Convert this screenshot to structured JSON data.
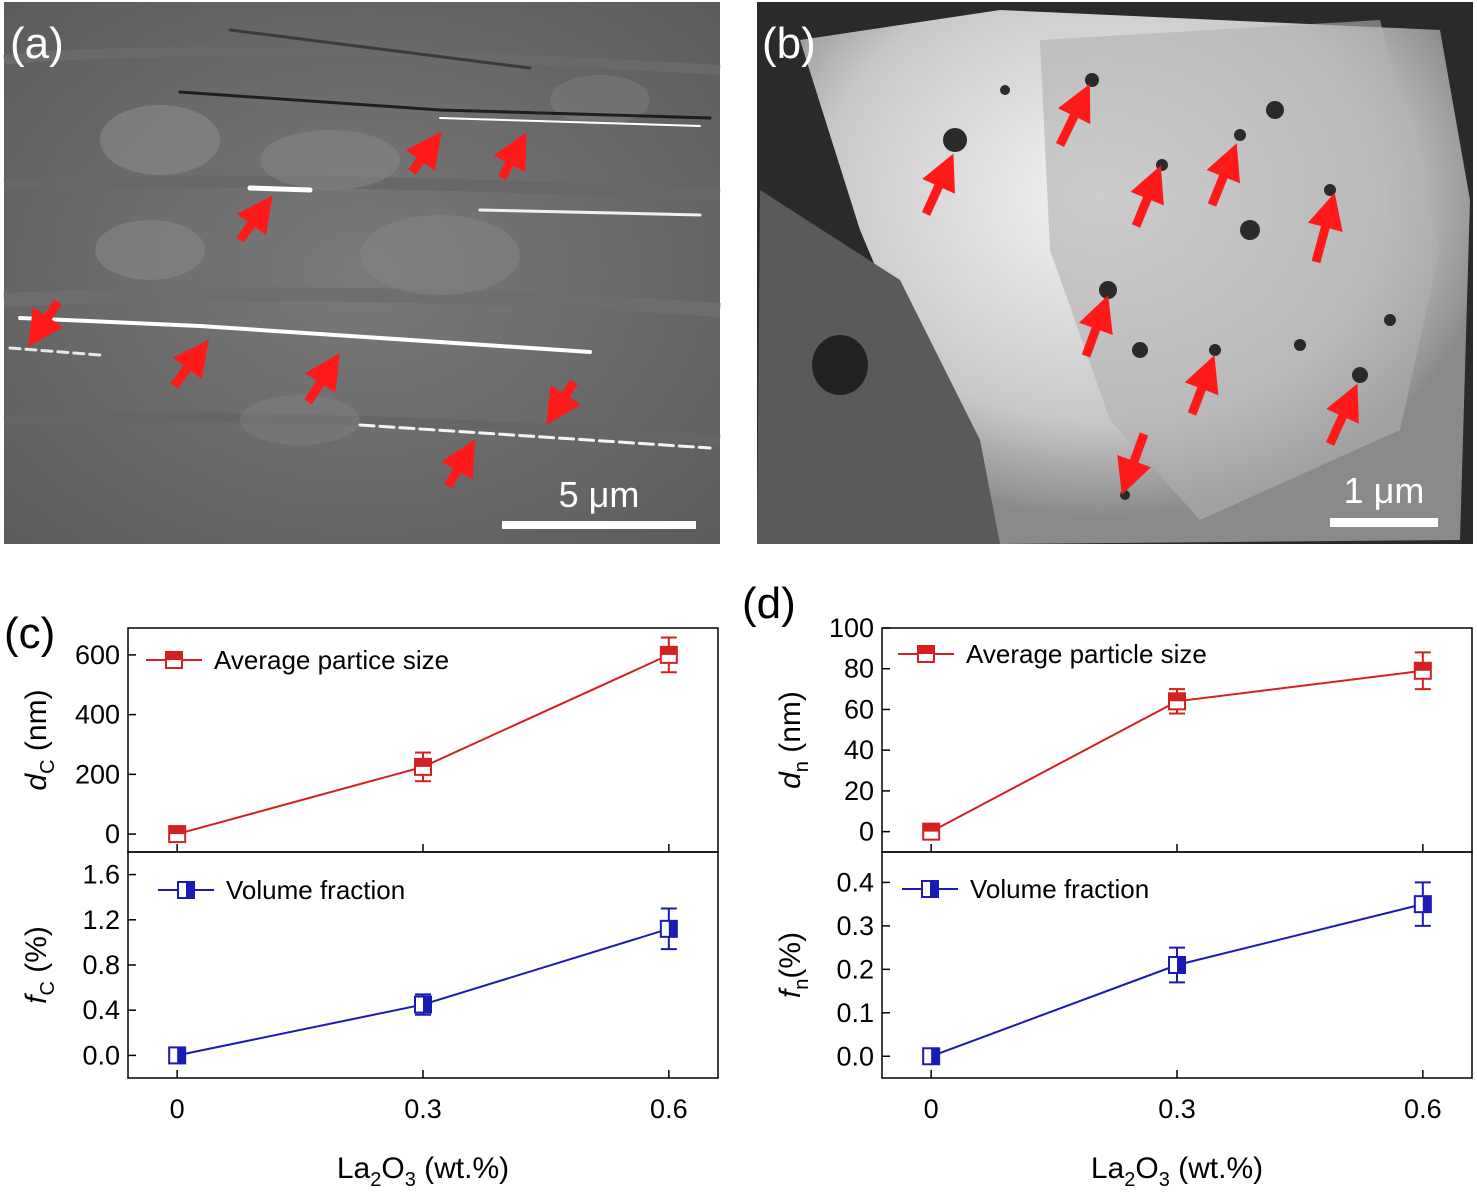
{
  "panels": {
    "a": {
      "label": "(a)",
      "scale_bar": "5 μm"
    },
    "b": {
      "label": "(b)",
      "scale_bar": "1 μm"
    },
    "c": {
      "label": "(c)"
    },
    "d": {
      "label": "(d)"
    }
  },
  "colors": {
    "red_series": "#d42020",
    "blue_series": "#1a1ab4",
    "arrow": "#ff1a1a"
  },
  "chart_data": [
    {
      "id": "c-top",
      "type": "line",
      "x": [
        0,
        0.3,
        0.6
      ],
      "y": [
        0,
        225,
        600
      ],
      "yerr": [
        8,
        48,
        58
      ],
      "series_name": "Average partice size",
      "ylabel_main": "d",
      "ylabel_sub": "C",
      "ylabel_unit": " (nm)",
      "yticks": [
        "0",
        "200",
        "400",
        "600"
      ],
      "ytick_values": [
        0,
        200,
        400,
        600
      ],
      "ylim": [
        -60,
        690
      ],
      "xlim": [
        -0.06,
        0.66
      ],
      "color": "#d42020",
      "marker": "half-filled-square-top"
    },
    {
      "id": "c-bottom",
      "type": "line",
      "x": [
        0,
        0.3,
        0.6
      ],
      "y": [
        0,
        0.45,
        1.12
      ],
      "yerr": [
        0.03,
        0.09,
        0.18
      ],
      "series_name": "Volume fraction",
      "ylabel_main": "f",
      "ylabel_sub": "C",
      "ylabel_unit": " (%)",
      "yticks": [
        "0.0",
        "0.4",
        "0.8",
        "1.2",
        "1.6"
      ],
      "ytick_values": [
        0,
        0.4,
        0.8,
        1.2,
        1.6
      ],
      "ylim": [
        -0.2,
        1.8
      ],
      "xlim": [
        -0.06,
        0.66
      ],
      "color": "#1a1ab4",
      "marker": "half-filled-square-right",
      "xticks": [
        "0",
        "0.3",
        "0.6"
      ],
      "xtick_values": [
        0,
        0.3,
        0.6
      ],
      "xlabel_main": "La",
      "xlabel_sub1": "2",
      "xlabel_mid": "O",
      "xlabel_sub2": "3",
      "xlabel_unit": " (wt.%)"
    },
    {
      "id": "d-top",
      "type": "line",
      "x": [
        0,
        0.3,
        0.6
      ],
      "y": [
        0,
        64,
        79
      ],
      "yerr": [
        1,
        6,
        9
      ],
      "series_name": "Average particle size",
      "ylabel_main": "d",
      "ylabel_sub": "n",
      "ylabel_unit": " (nm)",
      "yticks": [
        "0",
        "20",
        "40",
        "60",
        "80",
        "100"
      ],
      "ytick_values": [
        0,
        20,
        40,
        60,
        80,
        100
      ],
      "ylim": [
        -10,
        100
      ],
      "xlim": [
        -0.06,
        0.66
      ],
      "color": "#d42020",
      "marker": "half-filled-square-top"
    },
    {
      "id": "d-bottom",
      "type": "line",
      "x": [
        0,
        0.3,
        0.6
      ],
      "y": [
        0,
        0.21,
        0.35
      ],
      "yerr": [
        0.01,
        0.04,
        0.05
      ],
      "series_name": "Volume fraction",
      "ylabel_main": "f",
      "ylabel_sub": "n",
      "ylabel_unit": "(%)",
      "yticks": [
        "0.0",
        "0.1",
        "0.2",
        "0.3",
        "0.4"
      ],
      "ytick_values": [
        0,
        0.1,
        0.2,
        0.3,
        0.4
      ],
      "ylim": [
        -0.05,
        0.47
      ],
      "xlim": [
        -0.06,
        0.66
      ],
      "color": "#1a1ab4",
      "marker": "half-filled-square-right",
      "xticks": [
        "0",
        "0.3",
        "0.6"
      ],
      "xtick_values": [
        0,
        0.3,
        0.6
      ],
      "xlabel_main": "La",
      "xlabel_sub1": "2",
      "xlabel_mid": "O",
      "xlabel_sub2": "3",
      "xlabel_unit": " (wt.%)"
    }
  ]
}
